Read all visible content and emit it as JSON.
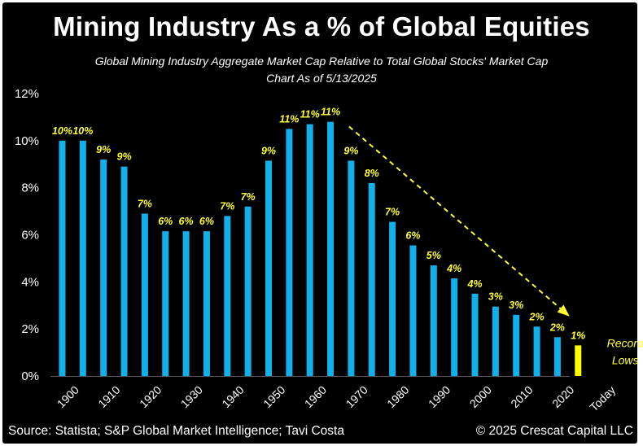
{
  "title": "Mining Industry As a % of Global Equities",
  "subtitle_line1": "Global Mining Industry Aggregate Market Cap Relative to Total Global Stocks' Market Cap",
  "subtitle_line2": "Chart As of 5/13/2025",
  "footer_source": "Source: Statista; S&P Global Market Intelligence; Tavi Costa",
  "footer_copyright": "© 2025 Crescat Capital LLC",
  "annotation": {
    "line1": "Record",
    "line2": "Lows"
  },
  "colors": {
    "background": "#000000",
    "bar": "#12B0EA",
    "highlight_bar": "#FFFF00",
    "label": "#FFFF33",
    "text": "#FFFFFF"
  },
  "chart_data": {
    "type": "bar",
    "yticks": [
      "0%",
      "2%",
      "4%",
      "6%",
      "8%",
      "10%",
      "12%"
    ],
    "ylim": [
      0,
      12
    ],
    "xticks": [
      "1900",
      "1910",
      "1920",
      "1930",
      "1940",
      "1950",
      "1960",
      "1970",
      "1980",
      "1990",
      "2000",
      "2010",
      "2020",
      "Today"
    ],
    "bars": [
      {
        "value": 10.0,
        "label": "10%"
      },
      {
        "value": 10.0,
        "label": "10%"
      },
      {
        "value": 9.2,
        "label": "9%"
      },
      {
        "value": 8.9,
        "label": "9%"
      },
      {
        "value": 6.9,
        "label": "7%"
      },
      {
        "value": 6.15,
        "label": "6%"
      },
      {
        "value": 6.15,
        "label": "6%"
      },
      {
        "value": 6.15,
        "label": "6%"
      },
      {
        "value": 6.8,
        "label": "7%"
      },
      {
        "value": 7.2,
        "label": "7%"
      },
      {
        "value": 9.15,
        "label": "9%"
      },
      {
        "value": 10.5,
        "label": "11%"
      },
      {
        "value": 10.7,
        "label": "11%"
      },
      {
        "value": 10.8,
        "label": "11%"
      },
      {
        "value": 9.15,
        "label": "9%"
      },
      {
        "value": 8.2,
        "label": "8%"
      },
      {
        "value": 6.55,
        "label": "7%"
      },
      {
        "value": 5.55,
        "label": "6%"
      },
      {
        "value": 4.7,
        "label": "5%"
      },
      {
        "value": 4.15,
        "label": "4%"
      },
      {
        "value": 3.5,
        "label": "4%"
      },
      {
        "value": 2.95,
        "label": "3%"
      },
      {
        "value": 2.6,
        "label": "3%"
      },
      {
        "value": 2.1,
        "label": "2%"
      },
      {
        "value": 1.65,
        "label": "2%"
      },
      {
        "value": 1.3,
        "label": "1%",
        "highlight": true
      }
    ],
    "grid": false,
    "trend_arrow": "dashed yellow arrow from 1970 peak down to Today"
  }
}
